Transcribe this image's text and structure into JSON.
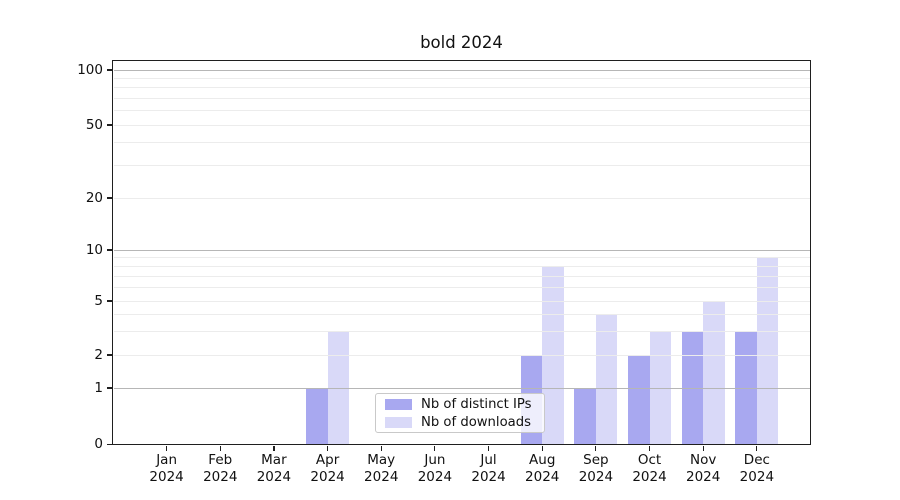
{
  "legend": {
    "items": [
      {
        "label": "Nb of distinct IPs",
        "color": "#a8a8f0"
      },
      {
        "label": "Nb of downloads",
        "color": "#d9d9f8"
      }
    ]
  },
  "y_axis": {
    "ticks": [
      {
        "value": 100,
        "label": "100"
      },
      {
        "value": 50,
        "label": "50"
      },
      {
        "value": 20,
        "label": "20"
      },
      {
        "value": 10,
        "label": "10"
      },
      {
        "value": 5,
        "label": "5"
      },
      {
        "value": 2,
        "label": "2"
      },
      {
        "value": 1,
        "label": "1"
      },
      {
        "value": 0,
        "label": "0"
      }
    ],
    "major_grid_values": [
      1,
      10,
      100
    ],
    "minor_grid_values": [
      2,
      3,
      4,
      5,
      6,
      7,
      8,
      9,
      20,
      30,
      40,
      50,
      60,
      70,
      80,
      90
    ]
  },
  "x_axis": {
    "categories": [
      {
        "month": "Jan",
        "year": "2024"
      },
      {
        "month": "Feb",
        "year": "2024"
      },
      {
        "month": "Mar",
        "year": "2024"
      },
      {
        "month": "Apr",
        "year": "2024"
      },
      {
        "month": "May",
        "year": "2024"
      },
      {
        "month": "Jun",
        "year": "2024"
      },
      {
        "month": "Jul",
        "year": "2024"
      },
      {
        "month": "Aug",
        "year": "2024"
      },
      {
        "month": "Sep",
        "year": "2024"
      },
      {
        "month": "Oct",
        "year": "2024"
      },
      {
        "month": "Nov",
        "year": "2024"
      },
      {
        "month": "Dec",
        "year": "2024"
      }
    ]
  },
  "chart_data": {
    "type": "bar",
    "title": "bold 2024",
    "categories": [
      "Jan 2024",
      "Feb 2024",
      "Mar 2024",
      "Apr 2024",
      "May 2024",
      "Jun 2024",
      "Jul 2024",
      "Aug 2024",
      "Sep 2024",
      "Oct 2024",
      "Nov 2024",
      "Dec 2024"
    ],
    "series": [
      {
        "name": "Nb of distinct IPs",
        "color": "#a8a8f0",
        "values": [
          0,
          0,
          0,
          1,
          0,
          0,
          0,
          2,
          1,
          2,
          3,
          3
        ]
      },
      {
        "name": "Nb of downloads",
        "color": "#d9d9f8",
        "values": [
          0,
          0,
          0,
          3,
          0,
          0,
          0,
          8,
          4,
          3,
          5,
          9
        ]
      }
    ],
    "xlabel": "",
    "ylabel": "",
    "yscale": "symlog",
    "y_ticks": [
      0,
      1,
      2,
      5,
      10,
      20,
      50,
      100
    ],
    "ylim": [
      0,
      120
    ],
    "grid": true,
    "legend_position": "lower center"
  }
}
